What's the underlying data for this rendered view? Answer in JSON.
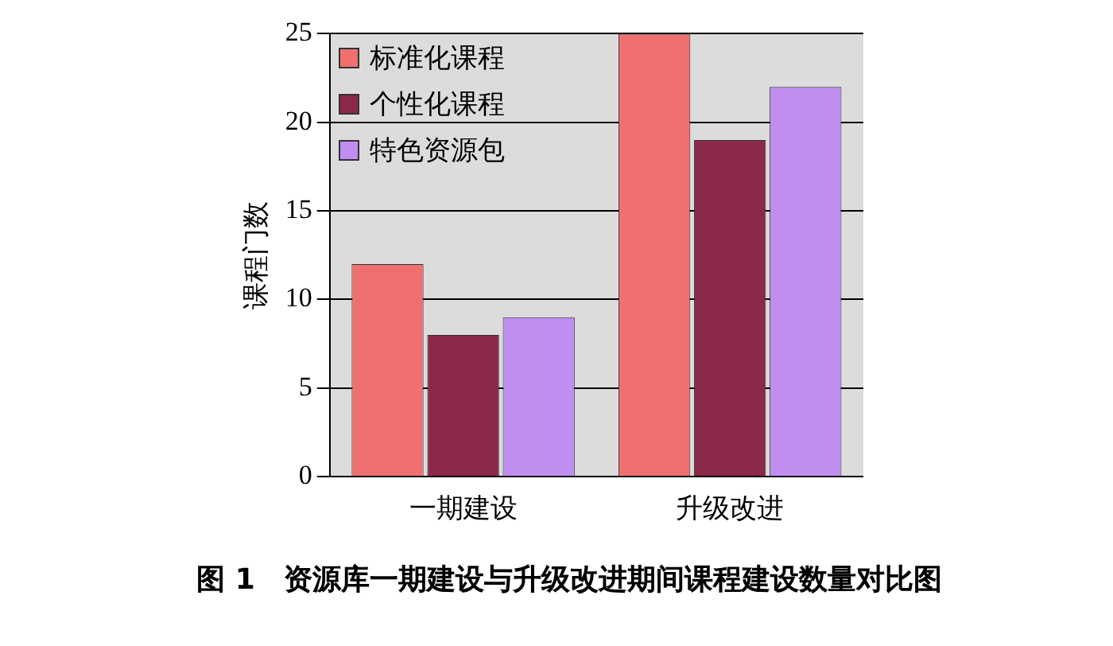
{
  "chart_data": {
    "type": "bar",
    "ylabel": "课程门数",
    "categories": [
      "一期建设",
      "升级改进"
    ],
    "series": [
      {
        "name": "标准化课程",
        "color": "#f07070",
        "values": [
          12,
          25
        ]
      },
      {
        "name": "个性化课程",
        "color": "#8c2848",
        "values": [
          8,
          19
        ]
      },
      {
        "name": "特色资源包",
        "color": "#c08ef0",
        "values": [
          9,
          22
        ]
      }
    ],
    "ylim": [
      0,
      25
    ],
    "yticks": [
      0,
      5,
      10,
      15,
      20,
      25
    ],
    "grid": "y",
    "legend": "top left",
    "annotations": [
      "图 1　资源库一期建设与升级改进期间课程建设数量对比图"
    ]
  }
}
